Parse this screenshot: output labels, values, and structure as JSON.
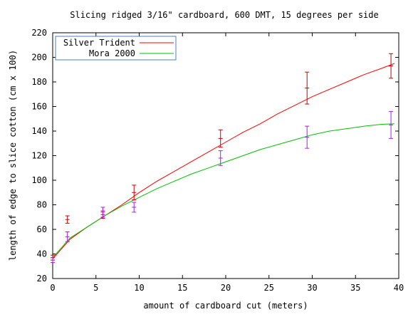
{
  "chart_data": {
    "type": "line",
    "title": "Slicing ridged 3/16\" cardboard, 600 DMT, 15 degrees per side",
    "xlabel": "amount of cardboard cut (meters)",
    "ylabel": "length of edge to slice cotton (cm x 100)",
    "xlim": [
      0,
      40
    ],
    "ylim": [
      20,
      220
    ],
    "xticks": [
      0,
      5,
      10,
      15,
      20,
      25,
      30,
      35,
      40
    ],
    "yticks": [
      20,
      40,
      60,
      80,
      100,
      120,
      140,
      160,
      180,
      200,
      220
    ],
    "grid": false,
    "legend_position": "top-left",
    "series": [
      {
        "name": "Silver Trident",
        "color": "#ff0000",
        "curve": {
          "x": [
            0,
            2,
            4,
            6,
            8,
            10,
            12,
            14,
            16,
            18,
            20,
            22,
            24,
            26,
            28,
            30,
            32,
            34,
            36,
            38,
            39.5
          ],
          "y": [
            36,
            52,
            62,
            71,
            80,
            90,
            99,
            107,
            115,
            123,
            131,
            139,
            146,
            154,
            161,
            168,
            174,
            180,
            186,
            191,
            195
          ]
        },
        "points": [
          {
            "x": 0,
            "y": 37,
            "err": 2
          },
          {
            "x": 1.7,
            "y": 68,
            "err": 3
          },
          {
            "x": 5.8,
            "y": 72,
            "err": 3
          },
          {
            "x": 9.4,
            "y": 90,
            "err": 6
          },
          {
            "x": 19.4,
            "y": 134,
            "err": 7
          },
          {
            "x": 29.4,
            "y": 175,
            "err": 13
          },
          {
            "x": 39.1,
            "y": 193,
            "err": 10
          }
        ]
      },
      {
        "name": "Mora 2000",
        "color": "#00c000",
        "curve": {
          "x": [
            0,
            2,
            4,
            6,
            8,
            10,
            12,
            14,
            16,
            18,
            20,
            22,
            24,
            26,
            28,
            30,
            32,
            34,
            36,
            38,
            39.5
          ],
          "y": [
            37,
            53,
            62,
            71,
            79,
            86,
            93,
            99,
            105,
            110,
            115,
            120,
            125,
            129,
            133,
            137,
            140,
            142,
            144,
            145.5,
            146
          ]
        },
        "points": [
          {
            "x": 0,
            "y": 35,
            "err": 2
          },
          {
            "x": 1.7,
            "y": 54,
            "err": 4
          },
          {
            "x": 5.8,
            "y": 74,
            "err": 4
          },
          {
            "x": 9.4,
            "y": 78,
            "err": 4
          },
          {
            "x": 19.4,
            "y": 118,
            "err": 6
          },
          {
            "x": 29.4,
            "y": 135,
            "err": 9
          },
          {
            "x": 39.1,
            "y": 145,
            "err": 11
          }
        ]
      }
    ]
  },
  "colors": {
    "axis": "#000000",
    "legend_border": "#4a7fc0",
    "error_bar_silver": "#cc0000",
    "error_bar_mora": "#a020f0"
  }
}
